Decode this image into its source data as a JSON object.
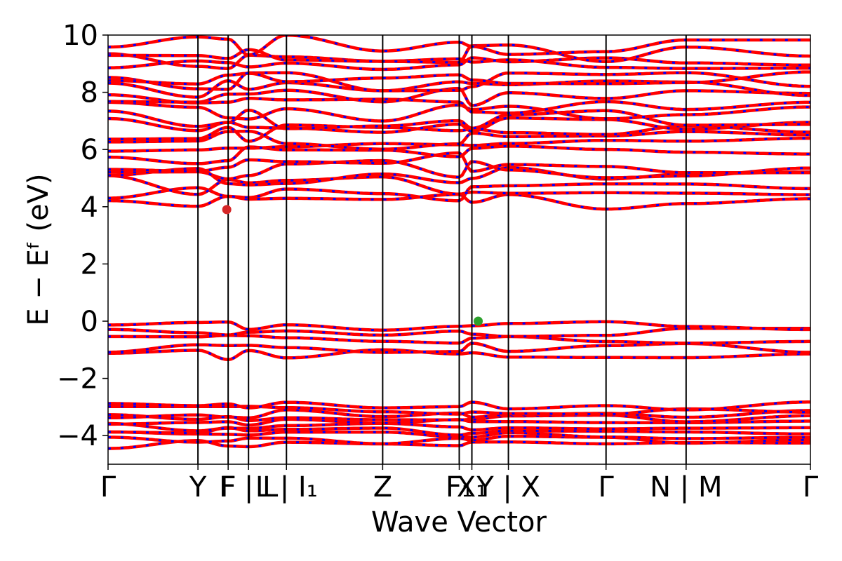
{
  "chart_data": {
    "type": "line",
    "title": "",
    "xlabel": "Wave Vector",
    "ylabel": "E − Eᶠ (eV)",
    "ylim": [
      -5,
      10
    ],
    "xlim": [
      0,
      1
    ],
    "grid": false,
    "y_ticks": [
      -4,
      -2,
      0,
      2,
      4,
      6,
      8,
      10
    ],
    "y_tick_labels": [
      "−4",
      "−2",
      "0",
      "2",
      "4",
      "6",
      "8",
      "10"
    ],
    "k_path": [
      {
        "label": "Γ",
        "x": 0.0
      },
      {
        "label": "Y",
        "x": 0.128
      },
      {
        "label": "F",
        "x": 0.171
      },
      {
        "label": "F | L",
        "x": 0.2
      },
      {
        "label": "L | I₁",
        "x": 0.254
      },
      {
        "label": "Z",
        "x": 0.391
      },
      {
        "label": "F₁",
        "x": 0.5
      },
      {
        "label": "X₁",
        "x": 0.518
      },
      {
        "label": "Y | X",
        "x": 0.57
      },
      {
        "label": "Γ",
        "x": 0.709
      },
      {
        "label": "N | M",
        "x": 0.823
      },
      {
        "label": "Γ",
        "x": 1.0
      }
    ],
    "series_colors": {
      "spin_up": "#ff0000",
      "spin_down": "#0000ff"
    },
    "markers": [
      {
        "role": "conduction band minimum",
        "x": 0.169,
        "y": 3.9,
        "color": "#d62728"
      },
      {
        "role": "valence band maximum",
        "x": 0.527,
        "y": 0.0,
        "color": "#2ca02c"
      }
    ],
    "band_groups": {
      "core": {
        "count": 10,
        "y_min": -4.45,
        "y_max": -2.8
      },
      "valence": {
        "count": 5,
        "y_min": -1.35,
        "y_max": 0.0
      },
      "conduction": {
        "count": 22,
        "y_min": 3.9,
        "y_max": 10.0
      }
    }
  }
}
